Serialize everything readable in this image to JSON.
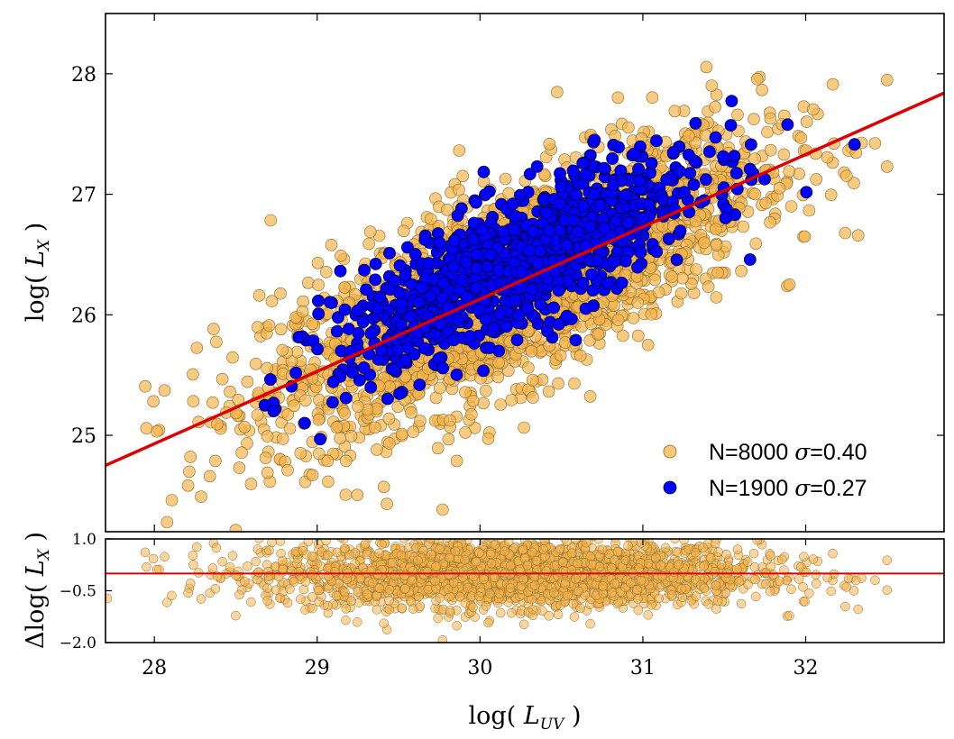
{
  "chart_data": [
    {
      "type": "scatter",
      "panel": "main",
      "xlim": [
        27.7,
        32.85
      ],
      "ylim": [
        24.2,
        28.5
      ],
      "xticks": [
        28,
        29,
        30,
        31,
        32
      ],
      "yticks": [
        25,
        26,
        27,
        28
      ],
      "xlabel": "log( L_UV )",
      "ylabel": "log( L_X )",
      "grid": false,
      "legend_position": "lower-right",
      "series": [
        {
          "name": "N=8000 σ=0.40",
          "legend": {
            "prefix": "N=8000 ",
            "sigma": "σ",
            "suffix": "=0.40"
          },
          "color": "#f5b54e",
          "edge_color": "#8a6a2a",
          "alpha": 0.7,
          "n": 8000,
          "x_range": [
            27.7,
            32.5
          ],
          "x_mean": 30.2,
          "x_sd": 0.75,
          "scatter_sd": 0.4
        },
        {
          "name": "N=1900 σ=0.27",
          "legend": {
            "prefix": "N=1900 ",
            "sigma": "σ",
            "suffix": "=0.27"
          },
          "color": "#0000ff",
          "edge_color": "#000033",
          "alpha": 1.0,
          "n": 1900,
          "x_range": [
            28.2,
            32.3
          ],
          "x_mean": 30.25,
          "x_sd": 0.55,
          "scatter_sd": 0.27
        }
      ],
      "fit_line": {
        "color": "#dd0000",
        "slope": 0.6,
        "intercept": 8.13,
        "points": [
          [
            27.7,
            24.75
          ],
          [
            32.85,
            27.84
          ]
        ]
      }
    },
    {
      "type": "scatter",
      "panel": "residuals",
      "xlim": [
        27.7,
        32.85
      ],
      "ylim": [
        -2.0,
        1.0
      ],
      "xticks": [
        28,
        29,
        30,
        31,
        32
      ],
      "xtick_labels": [
        "28",
        "29",
        "30",
        "31",
        "32"
      ],
      "yticks": [
        1.0,
        -0.5,
        -2.0
      ],
      "ytick_labels": [
        "1.0",
        "−0.5",
        "−2.0"
      ],
      "ylabel": "Δlog( L_X )",
      "grid": false,
      "series": [
        {
          "color": "#f5b54e",
          "edge_color": "#8a6a2a",
          "alpha": 0.55,
          "n": 8000,
          "scatter_sd": 0.4
        }
      ],
      "zero_line": {
        "y": 0.0,
        "color": "#dd0000"
      }
    }
  ]
}
